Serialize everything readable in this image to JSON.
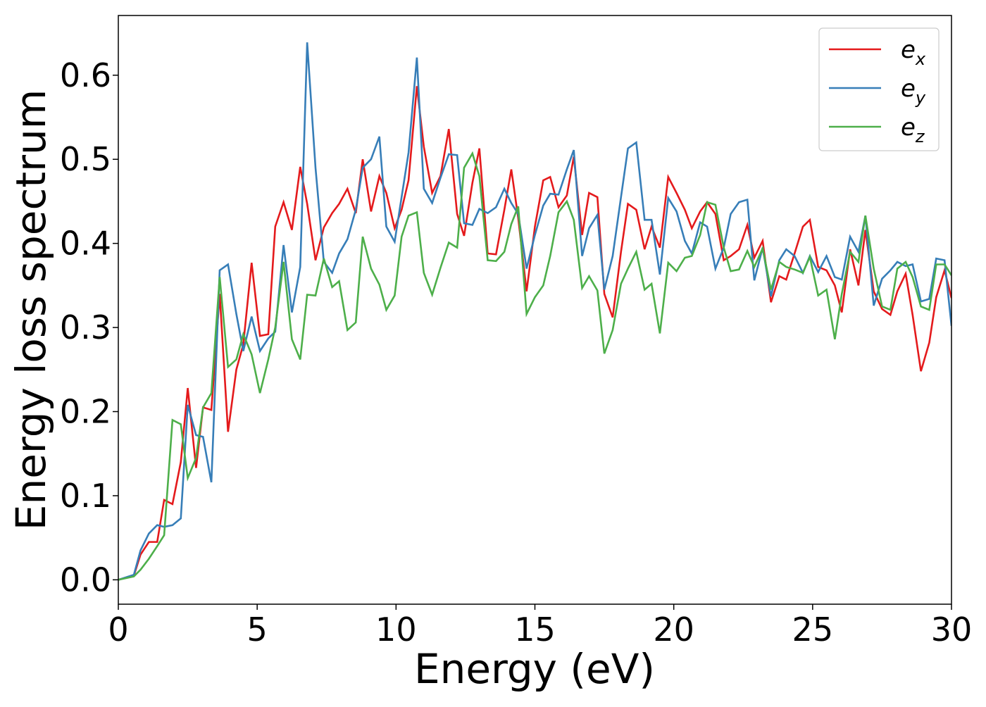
{
  "chart_data": {
    "type": "line",
    "xlabel": "Energy (eV)",
    "ylabel": "Energy loss spectrum",
    "x": [
      0,
      0.56,
      0.8,
      1.1,
      1.4,
      1.65,
      1.95,
      2.25,
      2.5,
      2.8,
      3.05,
      3.35,
      3.65,
      3.95,
      4.25,
      4.5,
      4.8,
      5.1,
      5.4,
      5.65,
      5.95,
      6.25,
      6.55,
      6.8,
      7.1,
      7.4,
      7.7,
      7.95,
      8.25,
      8.55,
      8.8,
      9.1,
      9.4,
      9.65,
      9.95,
      10.2,
      10.45,
      10.75,
      11.0,
      11.3,
      11.6,
      11.9,
      12.2,
      12.45,
      12.75,
      13.0,
      13.3,
      13.6,
      13.9,
      14.15,
      14.4,
      14.7,
      15.0,
      15.3,
      15.55,
      15.85,
      16.15,
      16.4,
      16.7,
      16.95,
      17.25,
      17.5,
      17.8,
      18.1,
      18.35,
      18.65,
      18.95,
      19.2,
      19.5,
      19.8,
      20.1,
      20.4,
      20.65,
      20.95,
      21.2,
      21.5,
      21.8,
      22.05,
      22.35,
      22.65,
      22.9,
      23.2,
      23.5,
      23.8,
      24.05,
      24.35,
      24.65,
      24.9,
      25.2,
      25.5,
      25.8,
      26.05,
      26.35,
      26.65,
      26.9,
      27.2,
      27.5,
      27.8,
      28.05,
      28.35,
      28.6,
      28.9,
      29.2,
      29.45,
      29.75,
      30
    ],
    "series": [
      {
        "name": "e_x",
        "color": "#e41a1c",
        "values": [
          0,
          0.005,
          0.03,
          0.045,
          0.045,
          0.095,
          0.09,
          0.14,
          0.228,
          0.133,
          0.205,
          0.202,
          0.34,
          0.176,
          0.25,
          0.28,
          0.377,
          0.29,
          0.292,
          0.42,
          0.449,
          0.416,
          0.491,
          0.447,
          0.38,
          0.419,
          0.436,
          0.447,
          0.465,
          0.436,
          0.5,
          0.438,
          0.48,
          0.46,
          0.418,
          0.44,
          0.475,
          0.587,
          0.515,
          0.46,
          0.48,
          0.536,
          0.435,
          0.409,
          0.472,
          0.513,
          0.388,
          0.387,
          0.44,
          0.488,
          0.43,
          0.343,
          0.42,
          0.475,
          0.479,
          0.443,
          0.457,
          0.503,
          0.41,
          0.46,
          0.455,
          0.34,
          0.312,
          0.39,
          0.447,
          0.44,
          0.393,
          0.42,
          0.395,
          0.479,
          0.46,
          0.44,
          0.418,
          0.438,
          0.449,
          0.435,
          0.38,
          0.385,
          0.393,
          0.422,
          0.383,
          0.403,
          0.33,
          0.361,
          0.357,
          0.388,
          0.42,
          0.428,
          0.372,
          0.368,
          0.35,
          0.318,
          0.393,
          0.35,
          0.416,
          0.343,
          0.322,
          0.315,
          0.343,
          0.364,
          0.315,
          0.248,
          0.282,
          0.336,
          0.368,
          0.335
        ]
      },
      {
        "name": "e_y",
        "color": "#377eb8",
        "values": [
          0,
          0.006,
          0.035,
          0.055,
          0.065,
          0.063,
          0.065,
          0.073,
          0.208,
          0.172,
          0.17,
          0.116,
          0.368,
          0.375,
          0.316,
          0.272,
          0.313,
          0.272,
          0.287,
          0.295,
          0.398,
          0.318,
          0.372,
          0.639,
          0.49,
          0.378,
          0.365,
          0.388,
          0.405,
          0.44,
          0.49,
          0.5,
          0.527,
          0.42,
          0.402,
          0.455,
          0.508,
          0.621,
          0.465,
          0.448,
          0.478,
          0.506,
          0.505,
          0.424,
          0.422,
          0.441,
          0.436,
          0.443,
          0.465,
          0.448,
          0.435,
          0.37,
          0.41,
          0.445,
          0.459,
          0.458,
          0.488,
          0.511,
          0.385,
          0.418,
          0.434,
          0.345,
          0.385,
          0.455,
          0.513,
          0.52,
          0.428,
          0.428,
          0.363,
          0.454,
          0.438,
          0.403,
          0.388,
          0.425,
          0.42,
          0.37,
          0.395,
          0.435,
          0.449,
          0.452,
          0.356,
          0.395,
          0.337,
          0.38,
          0.393,
          0.385,
          0.365,
          0.385,
          0.366,
          0.385,
          0.36,
          0.357,
          0.408,
          0.39,
          0.433,
          0.326,
          0.358,
          0.368,
          0.378,
          0.373,
          0.375,
          0.331,
          0.334,
          0.382,
          0.38,
          0.302
        ]
      },
      {
        "name": "e_z",
        "color": "#4daf4a",
        "values": [
          0,
          0.004,
          0.012,
          0.025,
          0.04,
          0.053,
          0.19,
          0.185,
          0.121,
          0.145,
          0.205,
          0.222,
          0.36,
          0.253,
          0.262,
          0.292,
          0.268,
          0.222,
          0.262,
          0.3,
          0.378,
          0.286,
          0.262,
          0.339,
          0.338,
          0.382,
          0.348,
          0.355,
          0.297,
          0.306,
          0.408,
          0.37,
          0.351,
          0.321,
          0.338,
          0.408,
          0.433,
          0.437,
          0.365,
          0.339,
          0.371,
          0.401,
          0.395,
          0.49,
          0.507,
          0.48,
          0.38,
          0.379,
          0.39,
          0.423,
          0.444,
          0.316,
          0.336,
          0.35,
          0.385,
          0.437,
          0.45,
          0.428,
          0.347,
          0.361,
          0.344,
          0.269,
          0.297,
          0.352,
          0.37,
          0.39,
          0.345,
          0.352,
          0.293,
          0.377,
          0.367,
          0.383,
          0.385,
          0.41,
          0.449,
          0.446,
          0.395,
          0.367,
          0.369,
          0.391,
          0.372,
          0.394,
          0.345,
          0.378,
          0.372,
          0.369,
          0.365,
          0.384,
          0.338,
          0.345,
          0.286,
          0.34,
          0.39,
          0.378,
          0.433,
          0.37,
          0.325,
          0.321,
          0.37,
          0.378,
          0.36,
          0.325,
          0.321,
          0.375,
          0.375,
          0.362
        ]
      }
    ],
    "xlim": [
      0,
      30
    ],
    "xticks": [
      0,
      5,
      10,
      15,
      20,
      25,
      30
    ],
    "ylim": [
      -0.029,
      0.671
    ],
    "yticks": [
      {
        "value": 0,
        "label": "0.0"
      },
      0.1,
      0.2,
      0.3,
      0.4,
      0.5,
      0.6
    ],
    "legend": "upper right"
  }
}
